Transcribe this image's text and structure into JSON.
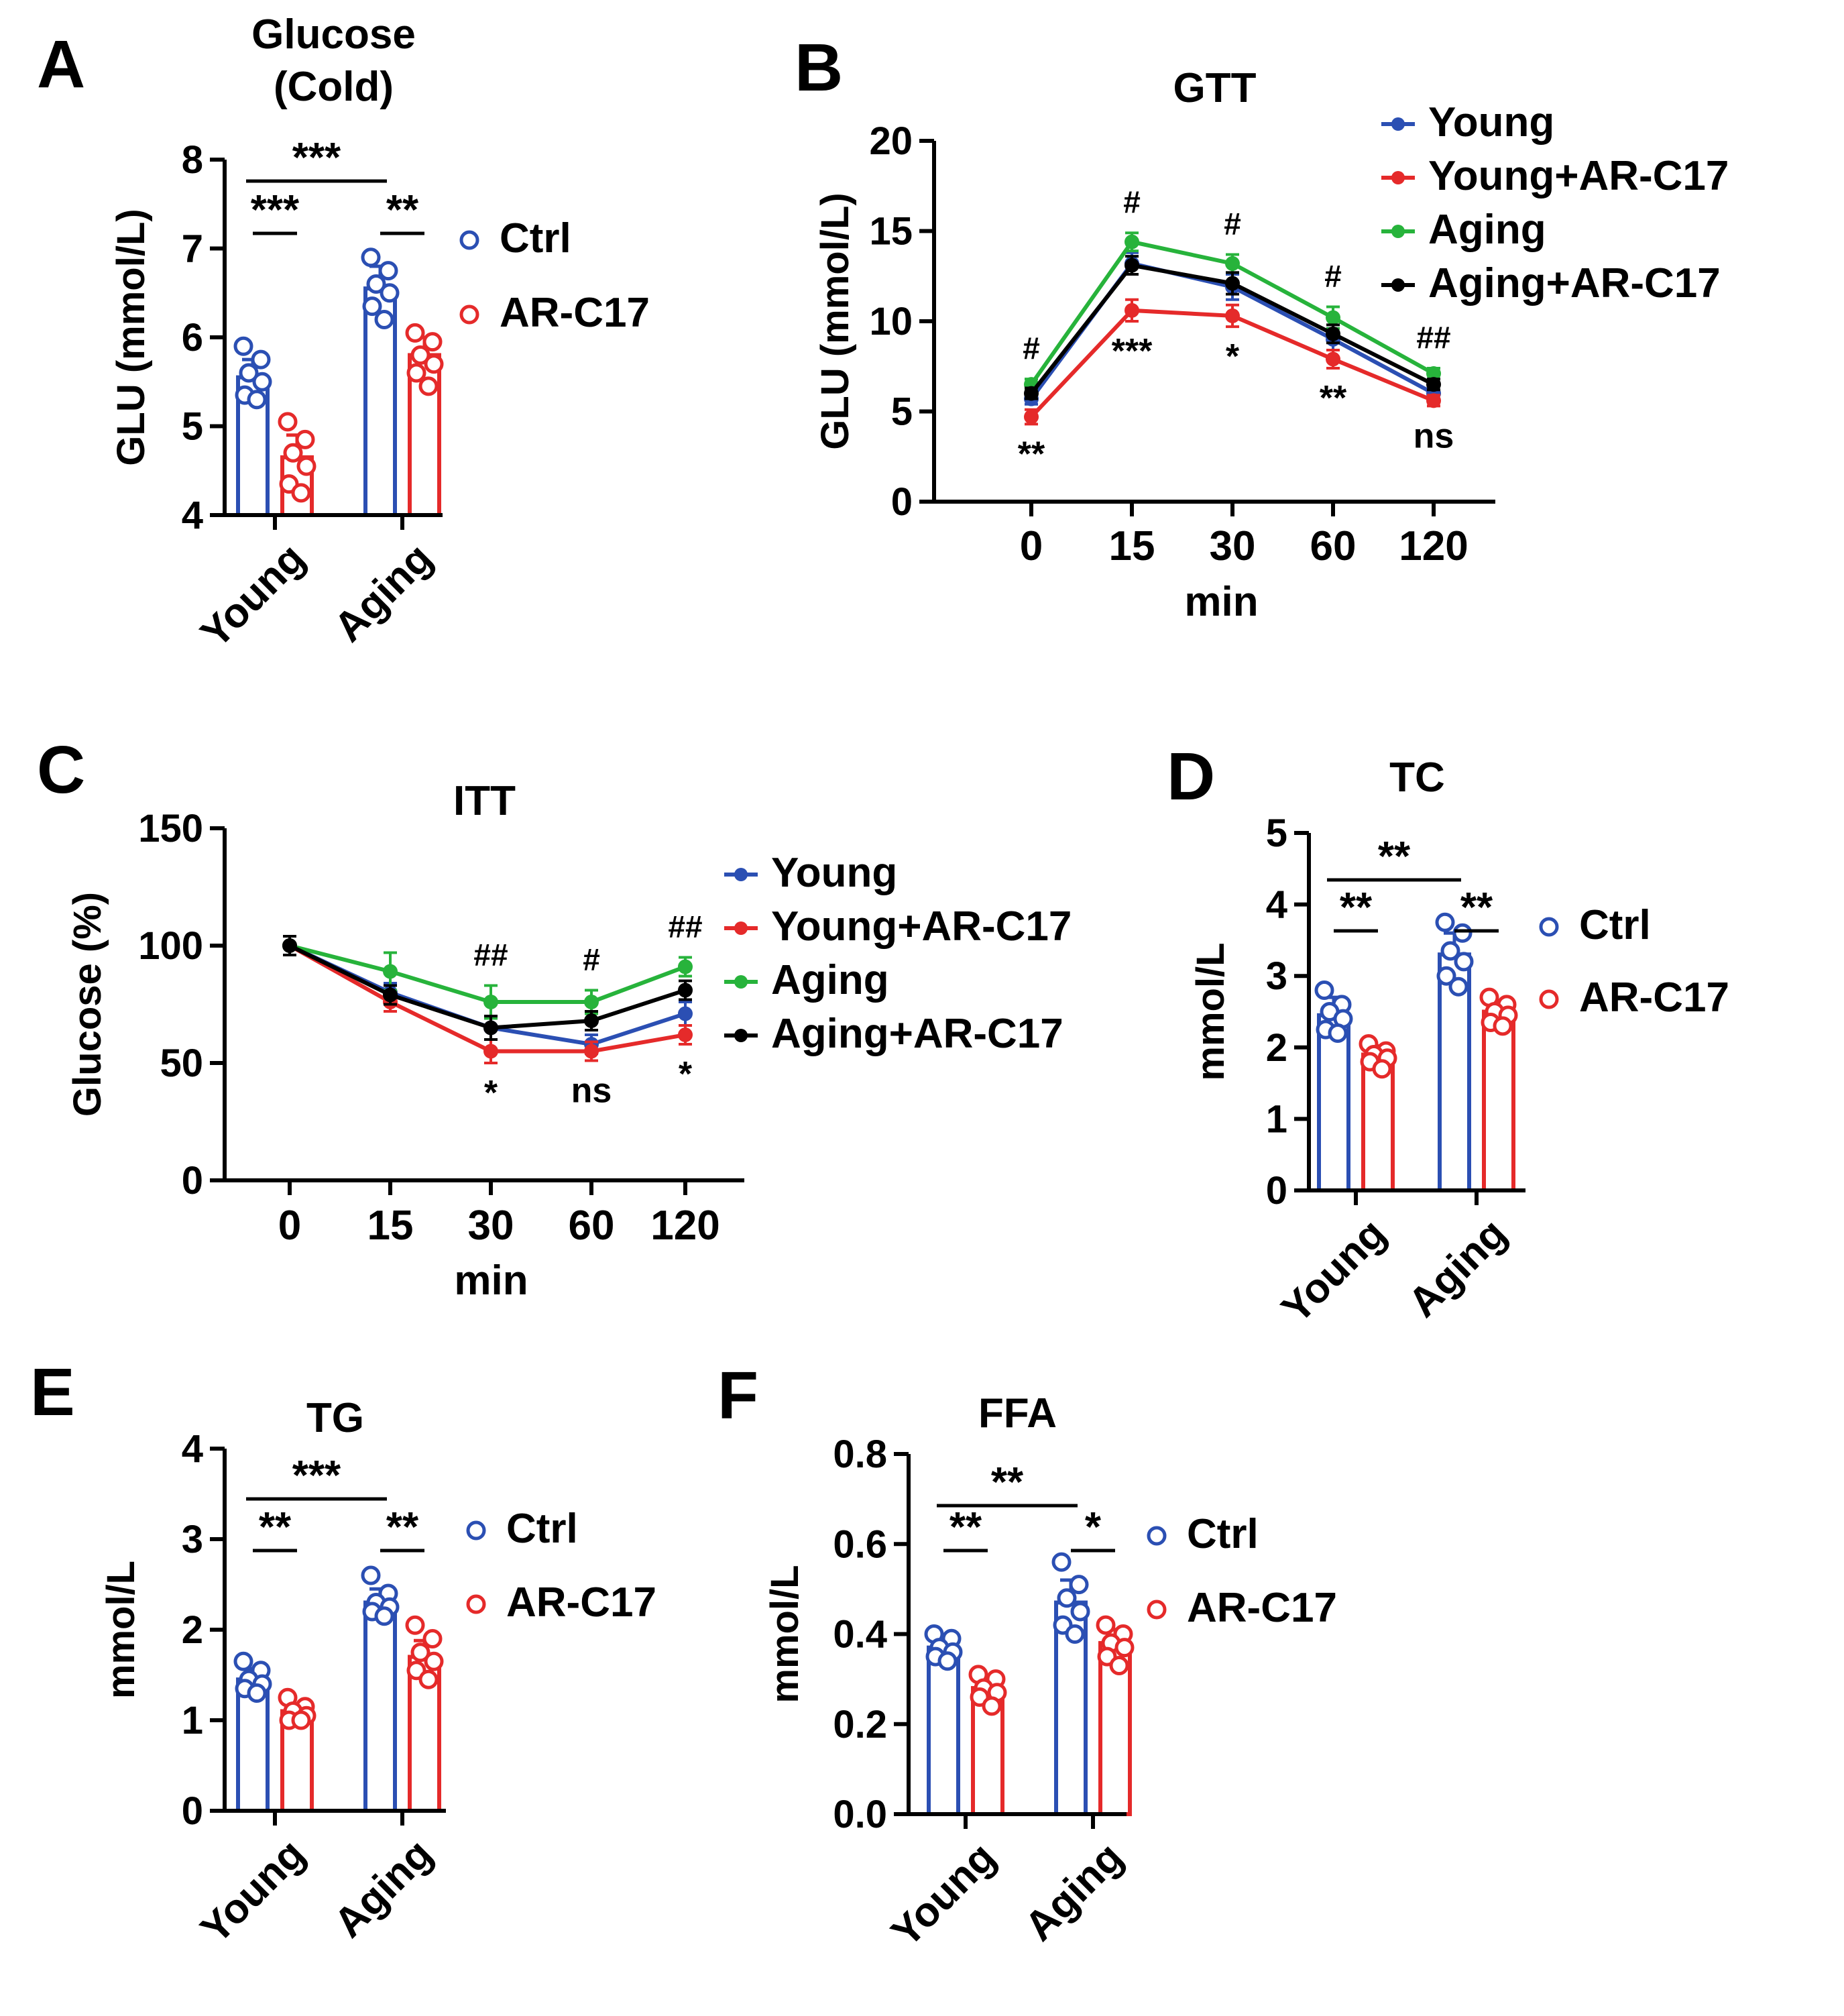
{
  "panels": [
    {
      "letter": "A",
      "chart_data": {
        "type": "bar",
        "title": [
          "Glucose",
          "(Cold)"
        ],
        "ylabel": "GLU (mmol/L)",
        "ylim": [
          4,
          8
        ],
        "yticks": [
          "4",
          "5",
          "6",
          "7",
          "8"
        ],
        "categories": [
          "Young",
          "Aging"
        ],
        "series": [
          {
            "name": "Ctrl",
            "color": "#2b4fb3",
            "values": [
              5.55,
              6.55
            ],
            "sd": [
              0.2,
              0.25
            ],
            "points": [
              [
                5.9,
                5.75,
                5.6,
                5.5,
                5.35,
                5.3
              ],
              [
                6.9,
                6.75,
                6.6,
                6.5,
                6.35,
                6.2
              ]
            ]
          },
          {
            "name": "AR-C17",
            "color": "#e52a2a",
            "values": [
              4.65,
              5.8
            ],
            "sd": [
              0.25,
              0.2
            ],
            "points": [
              [
                5.05,
                4.85,
                4.7,
                4.55,
                4.35,
                4.25
              ],
              [
                6.05,
                5.95,
                5.8,
                5.7,
                5.6,
                5.45
              ]
            ]
          }
        ],
        "significance": [
          {
            "label": "***",
            "type": "between"
          },
          {
            "label": "***",
            "type": "young"
          },
          {
            "label": "**",
            "type": "aging"
          }
        ]
      }
    },
    {
      "letter": "B",
      "chart_data": {
        "type": "line",
        "title": "GTT",
        "xlabel": "min",
        "ylabel": "GLU (mmol/L)",
        "ylim": [
          0,
          20
        ],
        "yticks": [
          "0",
          "5",
          "10",
          "15",
          "20"
        ],
        "categories": [
          "0",
          "15",
          "30",
          "60",
          "120"
        ],
        "series": [
          {
            "name": "Young",
            "color": "#2b4fb3",
            "values": [
              5.7,
              13.2,
              11.9,
              9.0,
              6.0
            ],
            "sd": [
              0.3,
              0.6,
              0.7,
              0.6,
              0.4
            ]
          },
          {
            "name": "Young+AR-C17",
            "color": "#e52a2a",
            "values": [
              4.7,
              10.6,
              10.3,
              7.9,
              5.6
            ],
            "sd": [
              0.4,
              0.6,
              0.6,
              0.5,
              0.3
            ]
          },
          {
            "name": "Aging",
            "color": "#27b33b",
            "values": [
              6.5,
              14.4,
              13.2,
              10.2,
              7.1
            ],
            "sd": [
              0.3,
              0.5,
              0.5,
              0.6,
              0.3
            ]
          },
          {
            "name": "Aging+AR-C17",
            "color": "#000000",
            "values": [
              6.0,
              13.1,
              12.1,
              9.3,
              6.5
            ],
            "sd": [
              0.3,
              0.5,
              0.6,
              0.5,
              0.3
            ]
          }
        ],
        "annotations_above": [
          "#",
          "#",
          "#",
          "#",
          "##"
        ],
        "annotations_below": [
          "**",
          "***",
          "*",
          "**",
          "ns"
        ]
      }
    },
    {
      "letter": "C",
      "chart_data": {
        "type": "line",
        "title": "ITT",
        "xlabel": "min",
        "ylabel": "Glucose (%)",
        "ylim": [
          0,
          150
        ],
        "yticks": [
          "0",
          "50",
          "100",
          "150"
        ],
        "categories": [
          "0",
          "15",
          "30",
          "60",
          "120"
        ],
        "series": [
          {
            "name": "Young",
            "color": "#2b4fb3",
            "values": [
              100,
              80,
              65,
              58,
              71
            ],
            "sd": [
              4,
              4,
              5,
              4,
              5
            ]
          },
          {
            "name": "Young+AR-C17",
            "color": "#e52a2a",
            "values": [
              100,
              76,
              55,
              55,
              62
            ],
            "sd": [
              4,
              4,
              5,
              4,
              4
            ]
          },
          {
            "name": "Aging",
            "color": "#27b33b",
            "values": [
              100,
              89,
              76,
              76,
              91
            ],
            "sd": [
              4,
              8,
              7,
              5,
              4
            ]
          },
          {
            "name": "Aging+AR-C17",
            "color": "#000000",
            "values": [
              100,
              79,
              65,
              68,
              81
            ],
            "sd": [
              4,
              4,
              5,
              4,
              4
            ]
          }
        ],
        "annotations_above": [
          "",
          "",
          "##",
          "#",
          "##"
        ],
        "annotations_below": [
          "",
          "",
          "*",
          "ns",
          "*"
        ]
      }
    },
    {
      "letter": "D",
      "chart_data": {
        "type": "bar",
        "title": "TC",
        "ylabel": "mmol/L",
        "ylim": [
          0,
          5
        ],
        "yticks": [
          "0",
          "1",
          "2",
          "3",
          "4",
          "5"
        ],
        "categories": [
          "Young",
          "Aging"
        ],
        "series": [
          {
            "name": "Ctrl",
            "color": "#2b4fb3",
            "values": [
              2.45,
              3.3
            ],
            "sd": [
              0.25,
              0.3
            ],
            "points": [
              [
                2.8,
                2.6,
                2.5,
                2.4,
                2.25,
                2.2
              ],
              [
                3.75,
                3.6,
                3.35,
                3.2,
                3.0,
                2.85
              ]
            ]
          },
          {
            "name": "AR-C17",
            "color": "#e52a2a",
            "values": [
              1.9,
              2.5
            ],
            "sd": [
              0.12,
              0.15
            ],
            "points": [
              [
                2.05,
                1.95,
                1.9,
                1.85,
                1.8,
                1.7
              ],
              [
                2.7,
                2.6,
                2.5,
                2.45,
                2.35,
                2.3
              ]
            ]
          }
        ],
        "significance": [
          {
            "label": "**",
            "type": "between"
          },
          {
            "label": "**",
            "type": "young"
          },
          {
            "label": "**",
            "type": "aging"
          }
        ]
      }
    },
    {
      "letter": "E",
      "chart_data": {
        "type": "bar",
        "title": "TG",
        "ylabel": "mmol/L",
        "ylim": [
          0,
          4
        ],
        "yticks": [
          "0",
          "1",
          "2",
          "3",
          "4"
        ],
        "categories": [
          "Young",
          "Aging"
        ],
        "series": [
          {
            "name": "Ctrl",
            "color": "#2b4fb3",
            "values": [
              1.45,
              2.3
            ],
            "sd": [
              0.12,
              0.15
            ],
            "points": [
              [
                1.65,
                1.55,
                1.45,
                1.4,
                1.35,
                1.3
              ],
              [
                2.6,
                2.4,
                2.3,
                2.25,
                2.2,
                2.15
              ]
            ]
          },
          {
            "name": "AR-C17",
            "color": "#e52a2a",
            "values": [
              1.1,
              1.7
            ],
            "sd": [
              0.08,
              0.18
            ],
            "points": [
              [
                1.25,
                1.15,
                1.1,
                1.05,
                1.0,
                1.0
              ],
              [
                2.05,
                1.9,
                1.75,
                1.65,
                1.55,
                1.45
              ]
            ]
          }
        ],
        "significance": [
          {
            "label": "***",
            "type": "between"
          },
          {
            "label": "**",
            "type": "young"
          },
          {
            "label": "**",
            "type": "aging"
          }
        ]
      }
    },
    {
      "letter": "F",
      "chart_data": {
        "type": "bar",
        "title": "FFA",
        "ylabel": "mmol/L",
        "ylim": [
          0,
          0.8
        ],
        "yticks": [
          "0.0",
          "0.2",
          "0.4",
          "0.6",
          "0.8"
        ],
        "categories": [
          "Young",
          "Aging"
        ],
        "series": [
          {
            "name": "Ctrl",
            "color": "#2b4fb3",
            "values": [
              0.37,
              0.47
            ],
            "sd": [
              0.02,
              0.05
            ],
            "points": [
              [
                0.4,
                0.39,
                0.37,
                0.36,
                0.35,
                0.34
              ],
              [
                0.56,
                0.51,
                0.48,
                0.45,
                0.42,
                0.4
              ]
            ]
          },
          {
            "name": "AR-C17",
            "color": "#e52a2a",
            "values": [
              0.28,
              0.38
            ],
            "sd": [
              0.025,
              0.03
            ],
            "points": [
              [
                0.31,
                0.3,
                0.28,
                0.27,
                0.26,
                0.24
              ],
              [
                0.42,
                0.4,
                0.38,
                0.37,
                0.35,
                0.33
              ]
            ]
          }
        ],
        "significance": [
          {
            "label": "**",
            "type": "between"
          },
          {
            "label": "**",
            "type": "young"
          },
          {
            "label": "*",
            "type": "aging"
          }
        ]
      }
    }
  ]
}
